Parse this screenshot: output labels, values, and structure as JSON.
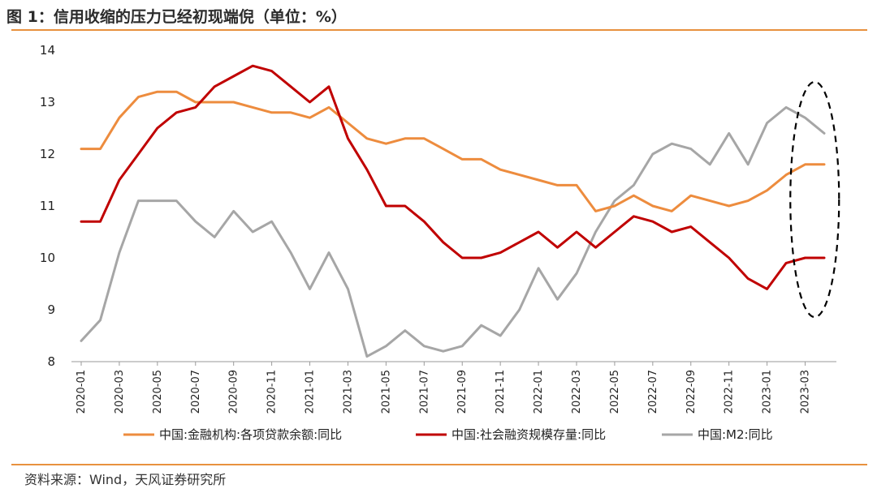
{
  "header": {
    "title": "图 1：信用收缩的压力已经初现端倪（单位：%）"
  },
  "footer": {
    "source": "资料来源：Wind，天风证券研究所"
  },
  "chart_data": {
    "type": "line",
    "ylim": [
      8,
      14
    ],
    "yticks": [
      "8",
      "9",
      "10",
      "11",
      "12",
      "13",
      "14"
    ],
    "x": [
      "2020-01",
      "2020-02",
      "2020-03",
      "2020-04",
      "2020-05",
      "2020-06",
      "2020-07",
      "2020-08",
      "2020-09",
      "2020-10",
      "2020-11",
      "2020-12",
      "2021-01",
      "2021-02",
      "2021-03",
      "2021-04",
      "2021-05",
      "2021-06",
      "2021-07",
      "2021-08",
      "2021-09",
      "2021-10",
      "2021-11",
      "2021-12",
      "2022-01",
      "2022-02",
      "2022-03",
      "2022-04",
      "2022-05",
      "2022-06",
      "2022-07",
      "2022-08",
      "2022-09",
      "2022-10",
      "2022-11",
      "2022-12",
      "2023-01",
      "2023-02",
      "2023-03",
      "2023-04"
    ],
    "xtick_labels": [
      "2020-01",
      "2020-03",
      "2020-05",
      "2020-07",
      "2020-09",
      "2020-11",
      "2021-01",
      "2021-03",
      "2021-05",
      "2021-07",
      "2021-09",
      "2021-11",
      "2022-01",
      "2022-03",
      "2022-05",
      "2022-07",
      "2022-09",
      "2022-11",
      "2023-01",
      "2023-03"
    ],
    "series": [
      {
        "name": "中国:金融机构:各项贷款余额:同比",
        "color": "#ed8c3e",
        "values": [
          12.1,
          12.1,
          12.7,
          13.1,
          13.2,
          13.2,
          13.0,
          13.0,
          13.0,
          12.9,
          12.8,
          12.8,
          12.7,
          12.9,
          12.6,
          12.3,
          12.2,
          12.3,
          12.3,
          12.1,
          11.9,
          11.9,
          11.7,
          11.6,
          11.5,
          11.4,
          11.4,
          10.9,
          11.0,
          11.2,
          11.0,
          10.9,
          11.2,
          11.1,
          11.0,
          11.1,
          11.3,
          11.6,
          11.8,
          11.8
        ]
      },
      {
        "name": "中国:社会融资规模存量:同比",
        "color": "#c00000",
        "values": [
          10.7,
          10.7,
          11.5,
          12.0,
          12.5,
          12.8,
          12.9,
          13.3,
          13.5,
          13.7,
          13.6,
          13.3,
          13.0,
          13.3,
          12.3,
          11.7,
          11.0,
          11.0,
          10.7,
          10.3,
          10.0,
          10.0,
          10.1,
          10.3,
          10.5,
          10.2,
          10.5,
          10.2,
          10.5,
          10.8,
          10.7,
          10.5,
          10.6,
          10.3,
          10.0,
          9.6,
          9.4,
          9.9,
          10.0,
          10.0
        ]
      },
      {
        "name": "中国:M2:同比",
        "color": "#a6a6a6",
        "values": [
          8.4,
          8.8,
          10.1,
          11.1,
          11.1,
          11.1,
          10.7,
          10.4,
          10.9,
          10.5,
          10.7,
          10.1,
          9.4,
          10.1,
          9.4,
          8.1,
          8.3,
          8.6,
          8.3,
          8.2,
          8.3,
          8.7,
          8.5,
          9.0,
          9.8,
          9.2,
          9.7,
          10.5,
          11.1,
          11.4,
          12.0,
          12.2,
          12.1,
          11.8,
          12.4,
          11.8,
          12.6,
          12.9,
          12.7,
          12.4
        ]
      }
    ],
    "annotation": {
      "shape": "dashed-ellipse",
      "covers_x": [
        "2023-03",
        "2023-04"
      ]
    },
    "grid": false,
    "legend_position": "bottom"
  }
}
